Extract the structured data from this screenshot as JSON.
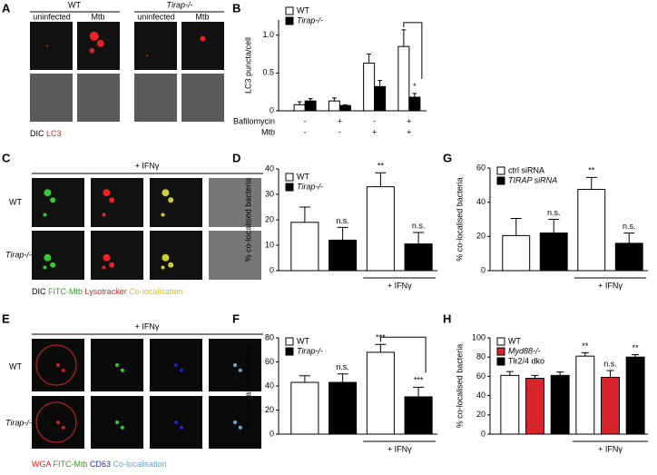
{
  "image_panels": [
    {
      "panel": "A",
      "groups": [
        "WT",
        "Tirap-/-"
      ],
      "columns": [
        "uninfected",
        "Mtb",
        "uninfected",
        "Mtb"
      ],
      "caption": [
        "DIC",
        "LC3"
      ]
    },
    {
      "panel": "C",
      "header": "+ IFNγ",
      "rows": [
        "WT",
        "Tirap-/-"
      ],
      "caption": [
        "DIC",
        "FITC-Mtb",
        "Lysotracker",
        "Co-localisation"
      ]
    },
    {
      "panel": "E",
      "header": "+ IFNγ",
      "rows": [
        "WT",
        "Tirap-/-"
      ],
      "caption": [
        "WGA",
        "FITC-Mtb",
        "CD63",
        "Co-localisation"
      ]
    }
  ],
  "chart_data": [
    {
      "type": "bar",
      "panel": "B",
      "ylabel": "LC3 puncta/cell",
      "categories": [
        null,
        null,
        null,
        null
      ],
      "treatments": [
        {
          "name": "Bafilomycin",
          "values": [
            "-",
            "+",
            "-",
            "+"
          ]
        },
        {
          "name": "Mtb",
          "values": [
            "-",
            "-",
            "+",
            "+"
          ]
        }
      ],
      "series": [
        {
          "name": "WT",
          "color": "#ffffff",
          "values": [
            0.08,
            0.13,
            0.63,
            0.85
          ],
          "errors": [
            0.04,
            0.04,
            0.12,
            0.22
          ]
        },
        {
          "name": "Tirap-/-",
          "color": "#000000",
          "values": [
            0.13,
            0.07,
            0.32,
            0.18
          ],
          "errors": [
            0.03,
            0.01,
            0.08,
            0.05
          ],
          "significance": [
            null,
            null,
            null,
            "*"
          ]
        }
      ],
      "ylim": [
        0,
        1.2
      ],
      "yticks": [
        0,
        0.5,
        {
          "value": 1,
          "label": "1.0"
        }
      ],
      "legend": "upper left"
    },
    {
      "type": "bar",
      "panel": "D",
      "ylabel": "% co-localised bacteria",
      "categories": [
        null,
        "+ IFNγ"
      ],
      "series": [
        {
          "name": "WT",
          "color": "#ffffff",
          "values": [
            19,
            33
          ],
          "errors": [
            6,
            5.5
          ],
          "significance": [
            null,
            "**"
          ]
        },
        {
          "name": "Tirap-/-",
          "color": "#000000",
          "values": [
            12,
            10.5
          ],
          "errors": [
            5,
            4.5
          ],
          "significance": [
            "n.s.",
            "n.s."
          ]
        }
      ],
      "ylim": [
        0,
        40
      ],
      "yticks": [
        0,
        10,
        20,
        30,
        40
      ],
      "legend": "upper left"
    },
    {
      "type": "bar",
      "panel": "G",
      "ylabel": "% co-localised bacteria",
      "categories": [
        null,
        "+ IFNγ"
      ],
      "series": [
        {
          "name": "ctrl siRNA",
          "color": "#ffffff",
          "values": [
            20.5,
            47.5
          ],
          "errors": [
            10,
            7
          ],
          "significance": [
            null,
            "**"
          ]
        },
        {
          "name": "TIRAP siRNA",
          "color": "#000000",
          "values": [
            22,
            16
          ],
          "errors": [
            8,
            6
          ],
          "significance": [
            "n.s.",
            "n.s."
          ]
        }
      ],
      "ylim": [
        0,
        60
      ],
      "yticks": [
        0,
        20,
        40,
        60
      ],
      "legend": "upper left"
    },
    {
      "type": "bar",
      "panel": "F",
      "ylabel": "% co-localised bacteria",
      "categories": [
        null,
        "+ IFNγ"
      ],
      "series": [
        {
          "name": "WT",
          "color": "#ffffff",
          "values": [
            43,
            68
          ],
          "errors": [
            5.5,
            6.5
          ],
          "significance": [
            null,
            "***"
          ]
        },
        {
          "name": "Tirap-/-",
          "color": "#000000",
          "values": [
            43,
            31
          ],
          "errors": [
            7,
            8
          ],
          "significance": [
            "n.s.",
            "***"
          ]
        }
      ],
      "ylim": [
        0,
        80
      ],
      "yticks": [
        0,
        20,
        40,
        60,
        80
      ],
      "legend": "upper left"
    },
    {
      "type": "bar",
      "panel": "H",
      "ylabel": "% co-localised bacteria",
      "categories": [
        null,
        "+ IFNγ"
      ],
      "series": [
        {
          "name": "WT",
          "color": "#ffffff",
          "values": [
            61,
            81
          ],
          "errors": [
            4,
            3.5
          ],
          "significance": [
            null,
            "**"
          ]
        },
        {
          "name": "Myd88-/-",
          "color": "#d7262b",
          "values": [
            58,
            59
          ],
          "errors": [
            3,
            7
          ],
          "significance": [
            null,
            "n.s."
          ]
        },
        {
          "name": "Tlr2/4 dko",
          "color": "#000000",
          "values": [
            61,
            80
          ],
          "errors": [
            3.5,
            2.5
          ],
          "significance": [
            null,
            "**"
          ]
        }
      ],
      "ylim": [
        0,
        100
      ],
      "yticks": [
        0,
        20,
        40,
        60,
        80,
        100
      ],
      "legend": "upper left"
    }
  ]
}
